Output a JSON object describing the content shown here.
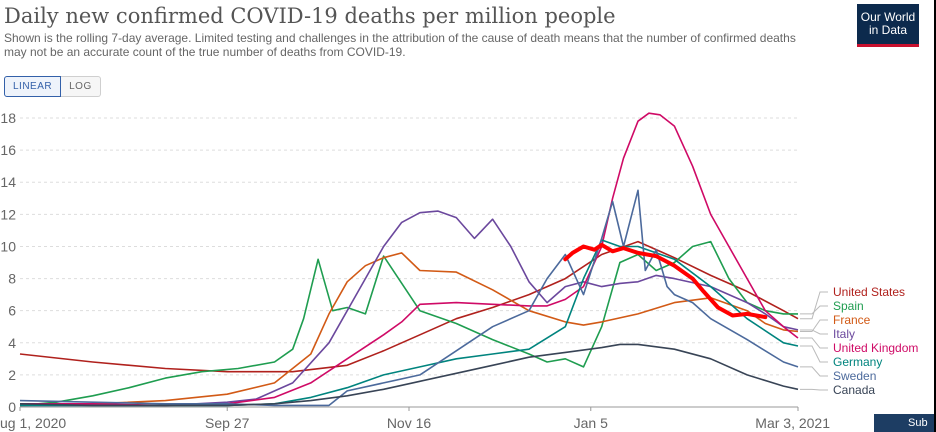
{
  "header": {
    "title": "Daily new confirmed COVID-19 deaths per million people",
    "subtitle": "Shown is the rolling 7-day average. Limited testing and challenges in the attribution of the cause of death means that the number of confirmed deaths may not be an accurate count of the true number of deaths from COVID-19.",
    "logo_line1": "Our World",
    "logo_line2": "in Data"
  },
  "controls": {
    "linear_label": "LINEAR",
    "log_label": "LOG",
    "active": "LINEAR"
  },
  "footer_button": {
    "label": "Sub"
  },
  "chart_data": {
    "type": "line",
    "title": "Daily new confirmed COVID-19 deaths per million people",
    "xlabel": "",
    "ylabel": "",
    "x_ticks": [
      "ug 1, 2020",
      "Sep 27",
      "Nov 16",
      "Jan 5",
      "Mar 3, 2021"
    ],
    "x_tick_days": [
      0,
      57,
      107,
      157,
      214
    ],
    "y_ticks": [
      0,
      2,
      4,
      6,
      8,
      10,
      12,
      14,
      16,
      18
    ],
    "ylim": [
      0,
      18.5
    ],
    "xlim": [
      0,
      214
    ],
    "grid": true,
    "legend": "right, labels at line ends",
    "series": [
      {
        "name": "United States",
        "color": "#b0211d",
        "x": [
          0,
          20,
          40,
          57,
          75,
          90,
          100,
          110,
          120,
          130,
          140,
          150,
          160,
          170,
          180,
          190,
          200,
          210,
          214
        ],
        "y": [
          3.3,
          2.8,
          2.4,
          2.2,
          2.2,
          2.6,
          3.5,
          4.5,
          5.5,
          6.2,
          7.0,
          8.0,
          9.5,
          10.3,
          9.3,
          8.2,
          7.2,
          6.0,
          5.5
        ]
      },
      {
        "name": "Spain",
        "color": "#1f9d50",
        "x": [
          0,
          10,
          20,
          30,
          40,
          50,
          60,
          70,
          75,
          78,
          82,
          86,
          90,
          95,
          100,
          110,
          120,
          130,
          140,
          145,
          150,
          155,
          160,
          165,
          170,
          175,
          180,
          185,
          190,
          195,
          200,
          205,
          210,
          214
        ],
        "y": [
          0.1,
          0.3,
          0.7,
          1.2,
          1.8,
          2.2,
          2.4,
          2.8,
          3.6,
          5.5,
          9.2,
          6.0,
          6.2,
          5.8,
          9.4,
          6.0,
          5.2,
          4.2,
          3.3,
          2.8,
          3.0,
          2.5,
          5.0,
          9.0,
          9.5,
          8.5,
          9.0,
          10.0,
          10.3,
          8.0,
          6.5,
          6.0,
          5.8,
          5.8
        ]
      },
      {
        "name": "France",
        "color": "#d25a16",
        "x": [
          0,
          20,
          40,
          57,
          70,
          80,
          85,
          90,
          95,
          100,
          105,
          110,
          120,
          130,
          140,
          150,
          155,
          160,
          170,
          180,
          190,
          200,
          205,
          210,
          214
        ],
        "y": [
          0.1,
          0.2,
          0.4,
          0.8,
          1.5,
          3.3,
          5.8,
          7.8,
          8.8,
          9.3,
          9.6,
          8.5,
          8.4,
          7.3,
          6.0,
          5.3,
          5.1,
          5.3,
          5.8,
          6.5,
          6.8,
          6.0,
          5.2,
          4.8,
          4.7
        ]
      },
      {
        "name": "Italy",
        "color": "#6b489d",
        "x": [
          0,
          20,
          40,
          57,
          65,
          75,
          85,
          95,
          100,
          105,
          110,
          115,
          120,
          125,
          130,
          135,
          140,
          145,
          150,
          155,
          160,
          165,
          170,
          175,
          180,
          190,
          200,
          205,
          210,
          214
        ],
        "y": [
          0.1,
          0.1,
          0.1,
          0.3,
          0.5,
          1.5,
          4.0,
          8.0,
          10.0,
          11.5,
          12.1,
          12.2,
          11.8,
          10.5,
          11.7,
          10.0,
          7.8,
          6.5,
          7.5,
          7.8,
          7.5,
          7.7,
          7.8,
          8.2,
          8.0,
          7.5,
          6.5,
          5.8,
          5.0,
          4.8
        ]
      },
      {
        "name": "United Kingdom",
        "color": "#cf0a66",
        "x": [
          0,
          20,
          40,
          57,
          70,
          80,
          90,
          100,
          105,
          110,
          120,
          130,
          140,
          145,
          150,
          155,
          160,
          163,
          166,
          170,
          173,
          176,
          180,
          185,
          190,
          195,
          200,
          205,
          210,
          214
        ],
        "y": [
          0.2,
          0.2,
          0.1,
          0.2,
          0.6,
          1.5,
          3.0,
          4.5,
          5.3,
          6.4,
          6.5,
          6.4,
          6.3,
          6.3,
          6.7,
          7.5,
          10.0,
          13.0,
          15.5,
          17.8,
          18.3,
          18.2,
          17.5,
          15.0,
          12.0,
          10.0,
          8.0,
          6.0,
          5.0,
          4.3
        ]
      },
      {
        "name": "Germany",
        "color": "#00847e",
        "x": [
          0,
          20,
          40,
          57,
          70,
          80,
          90,
          100,
          110,
          120,
          130,
          140,
          150,
          155,
          160,
          165,
          170,
          180,
          190,
          200,
          210,
          214
        ],
        "y": [
          0.1,
          0.1,
          0.1,
          0.1,
          0.2,
          0.6,
          1.2,
          2.0,
          2.5,
          3.0,
          3.3,
          3.6,
          5.0,
          8.0,
          10.4,
          10.0,
          10.0,
          9.2,
          7.5,
          5.5,
          4.0,
          3.8
        ]
      },
      {
        "name": "Sweden",
        "color": "#4c6a9c",
        "x": [
          0,
          20,
          40,
          57,
          70,
          85,
          90,
          100,
          110,
          120,
          130,
          140,
          145,
          150,
          155,
          160,
          163,
          166,
          170,
          172,
          175,
          178,
          180,
          185,
          190,
          200,
          210,
          214
        ],
        "y": [
          0.4,
          0.3,
          0.2,
          0.2,
          0.1,
          0.1,
          1.0,
          1.5,
          2.0,
          3.5,
          5.0,
          6.0,
          8.0,
          9.5,
          7.0,
          10.5,
          12.8,
          10.0,
          13.5,
          8.5,
          9.8,
          7.5,
          7.0,
          6.5,
          5.5,
          4.2,
          2.8,
          2.5
        ]
      },
      {
        "name": "Canada",
        "color": "#384456",
        "x": [
          0,
          20,
          40,
          57,
          70,
          80,
          90,
          100,
          110,
          120,
          130,
          140,
          150,
          160,
          165,
          170,
          180,
          190,
          200,
          210,
          214
        ],
        "y": [
          0.2,
          0.1,
          0.1,
          0.1,
          0.2,
          0.4,
          0.7,
          1.1,
          1.6,
          2.1,
          2.6,
          3.1,
          3.4,
          3.7,
          3.9,
          3.9,
          3.6,
          3.0,
          2.0,
          1.3,
          1.1
        ]
      }
    ],
    "annotation": {
      "color": "#ff0000",
      "x": [
        150,
        152,
        155,
        158,
        160,
        163,
        166,
        170,
        175,
        180,
        185,
        188,
        192,
        196,
        200,
        205
      ],
      "y": [
        9.2,
        9.6,
        10.0,
        9.8,
        10.1,
        9.7,
        9.9,
        9.6,
        9.4,
        8.8,
        8.0,
        7.2,
        6.2,
        5.7,
        5.8,
        5.6
      ]
    }
  }
}
